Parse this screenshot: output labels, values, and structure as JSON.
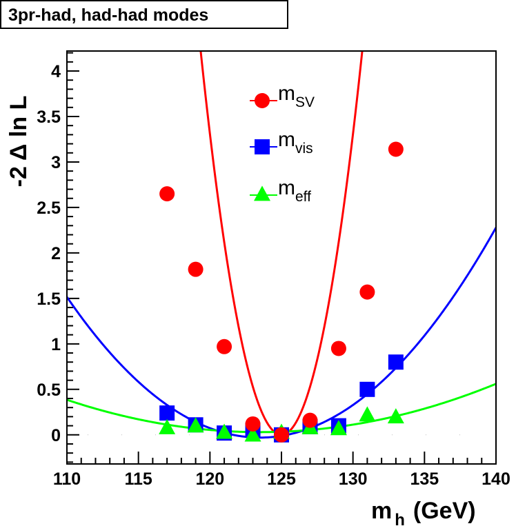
{
  "chart_data": {
    "type": "scatter",
    "title": "3pr-had, had-had modes",
    "xlabel_main": "m",
    "xlabel_sub": "h",
    "xlabel_unit": "(GeV)",
    "ylabel": "-2 Δ ln L",
    "xlim": [
      110,
      140
    ],
    "ylim": [
      -0.32,
      4.22
    ],
    "x_ticks": [
      110,
      115,
      120,
      125,
      130,
      135,
      140
    ],
    "x_tick_labels": [
      "110",
      "115",
      "120",
      "125",
      "130",
      "135",
      "140"
    ],
    "y_ticks": [
      0,
      0.5,
      1,
      1.5,
      2,
      2.5,
      3,
      3.5,
      4
    ],
    "y_tick_labels": [
      "0",
      "0.5",
      "1",
      "1.5",
      "2",
      "2.5",
      "3",
      "3.5",
      "4"
    ],
    "series": [
      {
        "name": "m_SV",
        "label_main": "m",
        "label_sub": "SV",
        "marker": "circle",
        "color": "#ff0000",
        "x": [
          117,
          119,
          121,
          123,
          125,
          127,
          129,
          131,
          133
        ],
        "y": [
          2.65,
          1.82,
          0.97,
          0.12,
          0.0,
          0.16,
          0.95,
          1.57,
          3.14
        ],
        "fit": {
          "center": 125.0,
          "a": 0.1323,
          "b": 0.0
        }
      },
      {
        "name": "m_vis",
        "label_main": "m",
        "label_sub": "vis",
        "marker": "square",
        "color": "#0000ff",
        "x": [
          117,
          119,
          121,
          123,
          125,
          127,
          129,
          131,
          133
        ],
        "y": [
          0.24,
          0.11,
          0.02,
          0.05,
          0.0,
          0.09,
          0.1,
          0.5,
          0.8
        ],
        "fit": {
          "center": 123.5,
          "a": 0.00848,
          "b": -0.03
        }
      },
      {
        "name": "m_eff",
        "label_main": "m",
        "label_sub": "eff",
        "marker": "triangle",
        "color": "#00ff00",
        "x": [
          117,
          119,
          121,
          123,
          125,
          127,
          129,
          131,
          133
        ],
        "y": [
          0.07,
          0.09,
          0.02,
          -0.01,
          0.02,
          0.07,
          0.06,
          0.21,
          0.19
        ],
        "fit": {
          "center": 123.5,
          "a": 0.00195,
          "b": 0.03
        }
      }
    ]
  }
}
